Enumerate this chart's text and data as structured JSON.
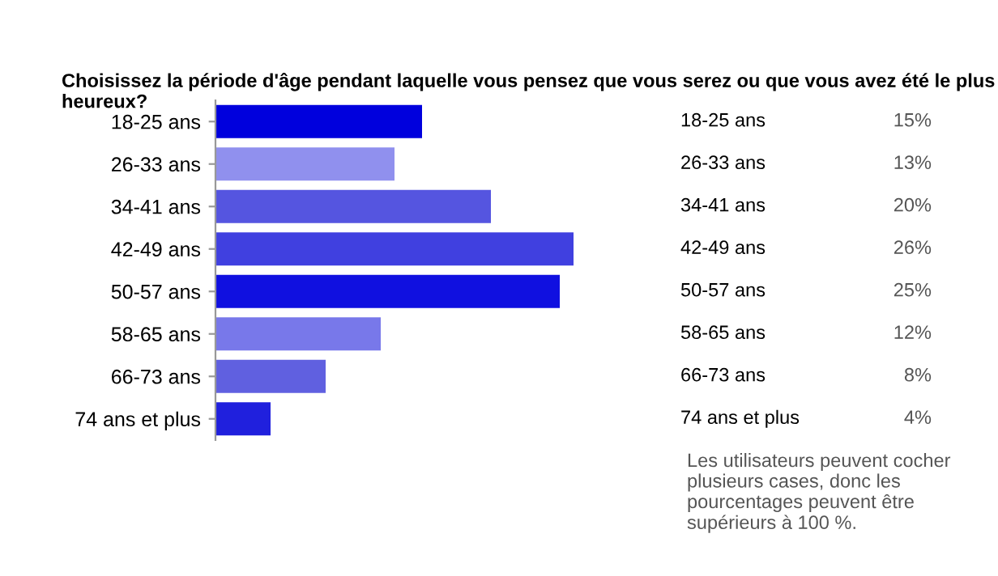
{
  "chart_data": {
    "type": "bar",
    "orientation": "horizontal",
    "title": "Choisissez la période d'âge pendant laquelle vous pensez que vous serez ou que vous avez été le plus heureux?",
    "categories": [
      "18-25 ans",
      "26-33 ans",
      "34-41 ans",
      "42-49 ans",
      "50-57 ans",
      "58-65 ans",
      "66-73 ans",
      "74 ans et plus"
    ],
    "values": [
      15,
      13,
      20,
      26,
      25,
      12,
      8,
      4
    ],
    "value_labels": [
      "15%",
      "13%",
      "20%",
      "26%",
      "25%",
      "12%",
      "8%",
      "4%"
    ],
    "colors": [
      "#0000dd",
      "#9090ee",
      "#5555e0",
      "#4040e0",
      "#1010e0",
      "#7878ea",
      "#6060e0",
      "#2020dd"
    ],
    "annotations": [
      "Les utilisateurs peuvent cocher plusieurs cases, donc les pourcentages peuvent être supérieurs à 100 %."
    ],
    "grid": false,
    "legend": false
  }
}
